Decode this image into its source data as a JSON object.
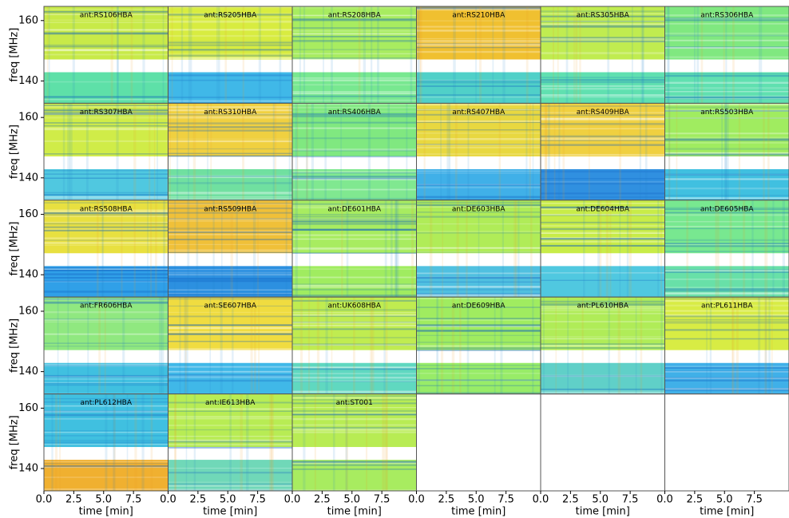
{
  "chart_data": {
    "type": "heatmap-grid",
    "xlabel": "time [min]",
    "ylabel": "freq [MHz]",
    "xlim": [
      0,
      10.4
    ],
    "xticks": [
      {
        "value": 0,
        "label": "0.0"
      },
      {
        "value": 2.5,
        "label": "2.5"
      },
      {
        "value": 5,
        "label": "5.0"
      },
      {
        "value": 7.5,
        "label": "7.5"
      }
    ],
    "ylim": [
      132.6,
      164.7
    ],
    "yticks": [
      140,
      160
    ],
    "gap": [
      142.9,
      147.1
    ],
    "panels": [
      {
        "label": "ant:RS106HBA",
        "colors": [
          "#c8ea48",
          "#5ee0a8"
        ]
      },
      {
        "label": "ant:RS205HBA",
        "colors": [
          "#d8ec40",
          "#40b8e8"
        ]
      },
      {
        "label": "ant:RS208HBA",
        "colors": [
          "#a8ec60",
          "#78e890"
        ]
      },
      {
        "label": "ant:RS210HBA",
        "colors": [
          "#f0c030",
          "#50d0c8"
        ]
      },
      {
        "label": "ant:RS305HBA",
        "colors": [
          "#c0ec50",
          "#60e0b0"
        ]
      },
      {
        "label": "ant:RS306HBA",
        "colors": [
          "#80e880",
          "#60e0b0"
        ]
      },
      {
        "label": "ant:RS307HBA",
        "colors": [
          "#d0ec48",
          "#50c8e0"
        ]
      },
      {
        "label": "ant:RS310HBA",
        "colors": [
          "#f0d040",
          "#70e0a0"
        ]
      },
      {
        "label": "ant:RS406HBA",
        "colors": [
          "#80e880",
          "#80e890"
        ]
      },
      {
        "label": "ant:RS407HBA",
        "colors": [
          "#e8d840",
          "#40b0e8"
        ]
      },
      {
        "label": "ant:RS409HBA",
        "colors": [
          "#f0d040",
          "#3090e0"
        ]
      },
      {
        "label": "ant:RS503HBA",
        "colors": [
          "#a0ec60",
          "#40c0e0"
        ]
      },
      {
        "label": "ant:RS508HBA",
        "colors": [
          "#e8e040",
          "#30a0e8"
        ]
      },
      {
        "label": "ant:RS509HBA",
        "colors": [
          "#f0c038",
          "#2c90e0"
        ]
      },
      {
        "label": "ant:DE601HBA",
        "colors": [
          "#a8ec60",
          "#a0ec60"
        ]
      },
      {
        "label": "ant:DE603HBA",
        "colors": [
          "#b0ec58",
          "#50c0e0"
        ]
      },
      {
        "label": "ant:DE604HBA",
        "colors": [
          "#c8ec48",
          "#50c8e0"
        ]
      },
      {
        "label": "ant:DE605HBA",
        "colors": [
          "#78e890",
          "#68e0a8"
        ]
      },
      {
        "label": "ant:FR606HBA",
        "colors": [
          "#90e880",
          "#40c0e0"
        ]
      },
      {
        "label": "ant:SE607HBA",
        "colors": [
          "#f0dc40",
          "#40b8e8"
        ]
      },
      {
        "label": "ant:UK608HBA",
        "colors": [
          "#c0ec50",
          "#60d8c0"
        ]
      },
      {
        "label": "ant:DE609HBA",
        "colors": [
          "#a0ec60",
          "#98ec68"
        ]
      },
      {
        "label": "ant:PL610HBA",
        "colors": [
          "#b0ec58",
          "#60d0c8"
        ]
      },
      {
        "label": "ant:PL611HBA",
        "colors": [
          "#d8ec44",
          "#40b0e8"
        ]
      },
      {
        "label": "ant:PL612HBA",
        "colors": [
          "#40c0e0",
          "#f0b030"
        ]
      },
      {
        "label": "ant:IE613HBA",
        "colors": [
          "#b8ec54",
          "#70d8b8"
        ]
      },
      {
        "label": "ant:ST001",
        "colors": [
          "#b8ec54",
          "#a8ec60"
        ]
      }
    ]
  }
}
